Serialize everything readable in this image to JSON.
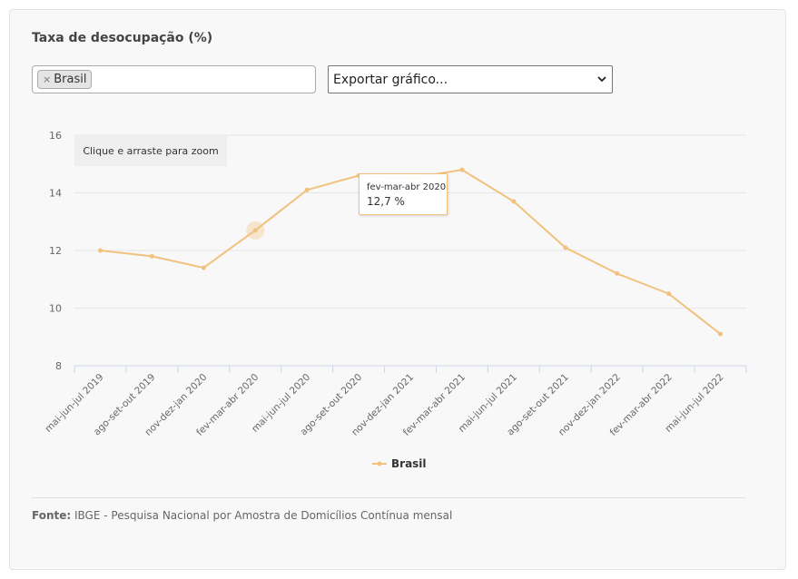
{
  "title": "Taxa de desocupação (%)",
  "filter": {
    "remove_symbol": "×",
    "selected_tag": "Brasil"
  },
  "export_select": {
    "selected": "Exportar gráfico..."
  },
  "zoom_hint": "Clique e arraste para zoom",
  "tooltip": {
    "category": "fev-mar-abr 2020",
    "value": "12,7 %"
  },
  "source": {
    "label": "Fonte:",
    "text": "IBGE - Pesquisa Nacional por Amostra de Domicílios Contínua mensal"
  },
  "colors": {
    "series": "#f1c27d",
    "grid": "#e6e6e6",
    "axis": "#ccd6eb"
  },
  "chart_data": {
    "type": "line",
    "title": "Taxa de desocupação (%)",
    "categories": [
      "mai-jun-jul 2019",
      "ago-set-out 2019",
      "nov-dez-jan 2020",
      "fev-mar-abr 2020",
      "mai-jun-jul 2020",
      "ago-set-out 2020",
      "nov-dez-jan 2021",
      "fev-mar-abr 2021",
      "mai-jun-jul 2021",
      "ago-set-out 2021",
      "nov-dez-jan 2022",
      "fev-mar-abr 2022",
      "mai-jun-jul 2022"
    ],
    "series": [
      {
        "name": "Brasil",
        "values": [
          12.0,
          11.8,
          11.4,
          12.7,
          14.1,
          14.6,
          14.5,
          14.8,
          13.7,
          12.1,
          11.2,
          10.5,
          9.1
        ]
      }
    ],
    "ylim": [
      8,
      16
    ],
    "yticks": [
      8,
      10,
      12,
      14,
      16
    ],
    "grid": true,
    "legend": "bottom-center",
    "highlighted_index": 3
  }
}
